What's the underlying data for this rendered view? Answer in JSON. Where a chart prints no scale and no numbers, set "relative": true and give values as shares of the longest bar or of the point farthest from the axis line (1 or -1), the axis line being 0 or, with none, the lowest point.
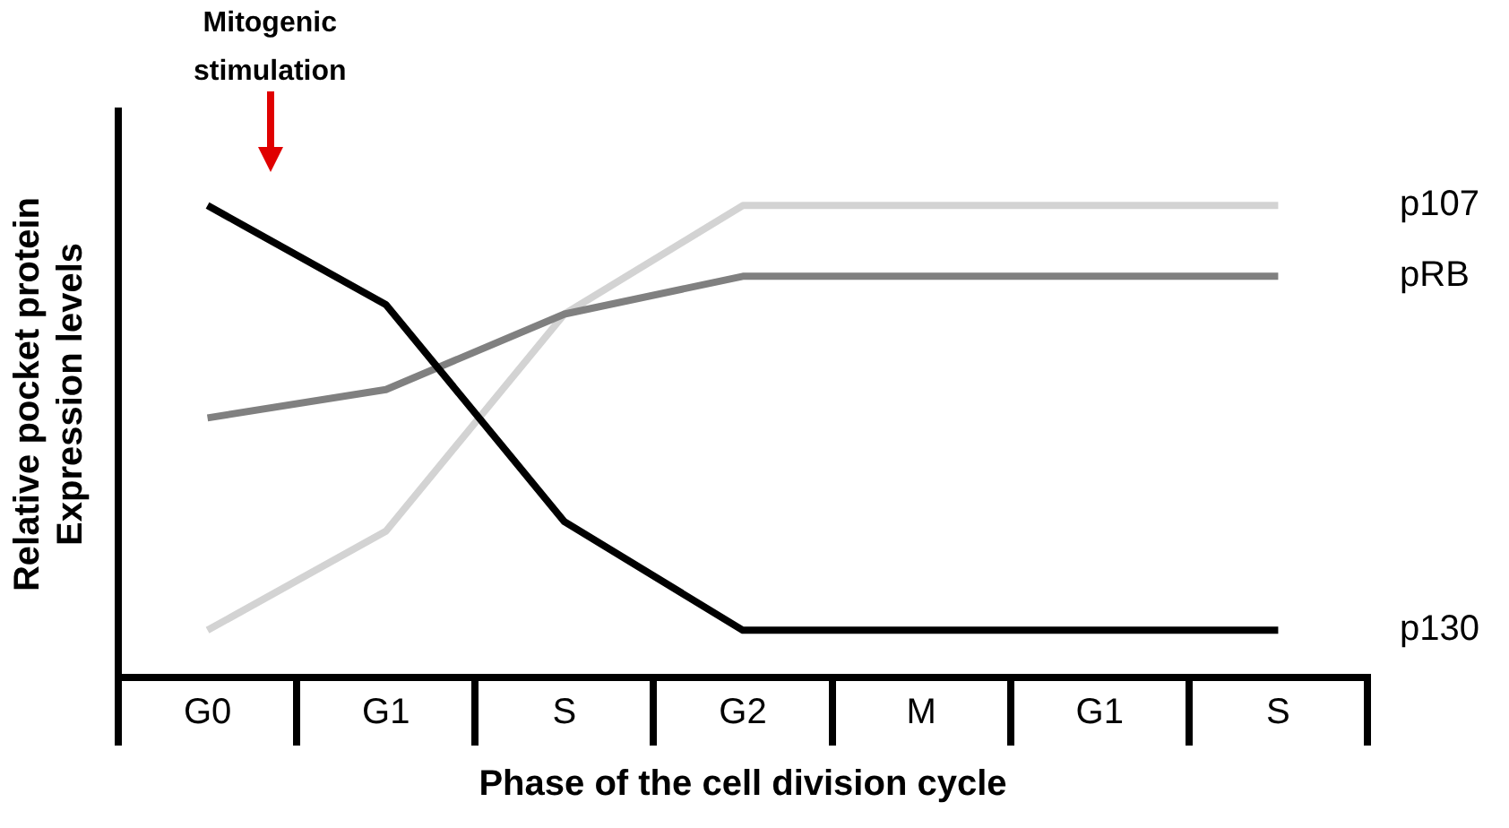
{
  "chart_data": {
    "type": "line",
    "relative": true,
    "xlabel": "Phase of the cell division cycle",
    "ylabel": "Relative pocket protein\nExpression levels",
    "categories": [
      "G0",
      "G1",
      "S",
      "G2",
      "M",
      "G1",
      "S"
    ],
    "series": [
      {
        "name": "p130",
        "color": "#000000",
        "values": [
          1,
          0.79,
          0.33,
          0.1,
          0.1,
          0.1,
          0.1
        ]
      },
      {
        "name": "pRB",
        "color": "#808080",
        "values": [
          0.55,
          0.61,
          0.77,
          0.85,
          0.85,
          0.85,
          0.85
        ]
      },
      {
        "name": "p107",
        "color": "#d3d3d3",
        "values": [
          0.1,
          0.31,
          0.77,
          1,
          1,
          1,
          1
        ]
      }
    ],
    "annotations": [
      "Mitogenic\nstimulation"
    ],
    "marker": "none",
    "line_style": "solid"
  }
}
